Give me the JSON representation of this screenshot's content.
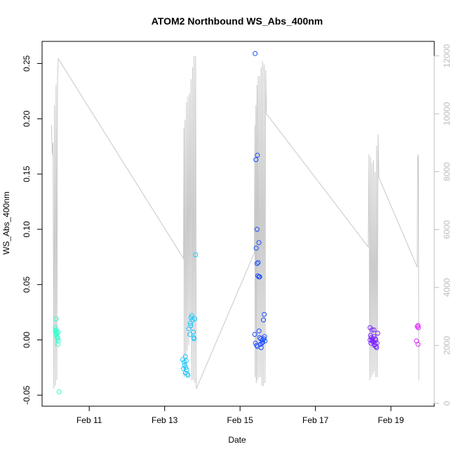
{
  "chart_data": {
    "type": "scatter",
    "title": "ATOM2 Northbound WS_Abs_400nm",
    "xlabel": "Date",
    "ylabel": "WS_Abs_400nm",
    "x_unit": "days since 2000-01-01 are not used; x values are day-of-February (decimal)",
    "x_range": [
      9.75,
      20.15
    ],
    "x_ticks": [
      11,
      13,
      15,
      17,
      19
    ],
    "x_tick_labels": [
      "Feb 11",
      "Feb 13",
      "Feb 15",
      "Feb 17",
      "Feb 19"
    ],
    "ylim": [
      -0.06,
      0.27
    ],
    "y_ticks": [
      -0.05,
      0.0,
      0.05,
      0.1,
      0.15,
      0.2,
      0.25
    ],
    "y_tick_labels": [
      "-0.05",
      "0.00",
      "0.05",
      "0.10",
      "0.15",
      "0.20",
      "0.25"
    ],
    "y2lim": [
      -100,
      12500
    ],
    "y2_ticks": [
      0,
      2000,
      4000,
      6000,
      8000,
      10000,
      12000
    ],
    "y2_tick_labels": [
      "0",
      "2000",
      "4000",
      "6000",
      "8000",
      "10000",
      "12000"
    ],
    "grid": false,
    "series": [
      {
        "color": "#33ffcc",
        "points": [
          [
            10.12,
            0.019
          ],
          [
            10.1,
            0.011
          ],
          [
            10.12,
            0.009
          ],
          [
            10.1,
            0.008
          ],
          [
            10.13,
            0.007
          ],
          [
            10.15,
            0.006
          ],
          [
            10.12,
            0.005
          ],
          [
            10.14,
            0.003
          ],
          [
            10.16,
            0.002
          ],
          [
            10.18,
            0.007
          ],
          [
            10.17,
            0.001
          ],
          [
            10.18,
            -0.001
          ],
          [
            10.17,
            -0.004
          ],
          [
            10.2,
            -0.047
          ]
        ]
      },
      {
        "color": "#19c6ff",
        "points": [
          [
            13.48,
            -0.018
          ],
          [
            13.52,
            -0.02
          ],
          [
            13.55,
            -0.015
          ],
          [
            13.57,
            -0.019
          ],
          [
            13.53,
            -0.023
          ],
          [
            13.56,
            -0.025
          ],
          [
            13.5,
            -0.026
          ],
          [
            13.58,
            -0.027
          ],
          [
            13.55,
            -0.03
          ],
          [
            13.6,
            -0.031
          ],
          [
            13.62,
            -0.032
          ],
          [
            13.64,
            0.01
          ],
          [
            13.67,
            0.005
          ],
          [
            13.68,
            0.015
          ],
          [
            13.7,
            0.02
          ],
          [
            13.72,
            0.022
          ],
          [
            13.74,
            0.018
          ],
          [
            13.76,
            0.007
          ],
          [
            13.77,
            0.002
          ],
          [
            13.78,
            0.001
          ],
          [
            13.8,
            0.019
          ],
          [
            13.82,
            0.077
          ],
          [
            13.69,
            0.013
          ]
        ]
      },
      {
        "color": "#1a4dff",
        "points": [
          [
            15.4,
            0.259
          ],
          [
            15.46,
            0.167
          ],
          [
            15.42,
            0.163
          ],
          [
            15.45,
            0.1
          ],
          [
            15.5,
            0.088
          ],
          [
            15.43,
            0.083
          ],
          [
            15.48,
            0.07
          ],
          [
            15.45,
            0.069
          ],
          [
            15.47,
            0.058
          ],
          [
            15.5,
            0.057
          ],
          [
            15.52,
            0.057
          ],
          [
            15.39,
            0.005
          ],
          [
            15.41,
            -0.003
          ],
          [
            15.44,
            -0.005
          ],
          [
            15.46,
            -0.006
          ],
          [
            15.5,
            0.008
          ],
          [
            15.52,
            0.002
          ],
          [
            15.54,
            -0.004
          ],
          [
            15.56,
            -0.007
          ],
          [
            15.58,
            -0.003
          ],
          [
            15.6,
            0.0
          ],
          [
            15.62,
            0.018
          ],
          [
            15.64,
            0.023
          ],
          [
            15.6,
            -0.002
          ],
          [
            15.63,
            0.001
          ],
          [
            15.66,
            -0.001
          ],
          [
            15.55,
            0.001
          ],
          [
            15.65,
            0.003
          ]
        ]
      },
      {
        "color": "#7a22ff",
        "points": [
          [
            18.45,
            0.011
          ],
          [
            18.5,
            0.009
          ],
          [
            18.55,
            0.009
          ],
          [
            18.46,
            0.004
          ],
          [
            18.48,
            0.002
          ],
          [
            18.52,
            0.001
          ],
          [
            18.55,
            0.003
          ],
          [
            18.58,
            0.001
          ],
          [
            18.6,
            0.0
          ],
          [
            18.45,
            0.0
          ],
          [
            18.5,
            -0.001
          ],
          [
            18.47,
            -0.003
          ],
          [
            18.53,
            -0.002
          ],
          [
            18.56,
            -0.005
          ],
          [
            18.6,
            -0.006
          ],
          [
            18.63,
            -0.003
          ],
          [
            18.62,
            -0.007
          ],
          [
            18.65,
            0.006
          ],
          [
            18.58,
            -0.004
          ],
          [
            18.5,
            0.0
          ]
        ]
      },
      {
        "color": "#e022ff",
        "points": [
          [
            19.72,
            0.013
          ],
          [
            19.7,
            0.012
          ],
          [
            19.73,
            0.011
          ],
          [
            19.68,
            -0.001
          ],
          [
            19.72,
            -0.004
          ]
        ]
      }
    ],
    "secondary_line": {
      "color": "#c8c8c8",
      "note": "gray line on right axis",
      "points": [
        [
          10.0,
          9600
        ],
        [
          10.02,
          8600
        ],
        [
          10.04,
          9000
        ],
        [
          10.06,
          500
        ],
        [
          10.08,
          10300
        ],
        [
          10.1,
          600
        ],
        [
          10.12,
          11000
        ],
        [
          10.14,
          800
        ],
        [
          10.16,
          11200
        ],
        [
          10.18,
          11900
        ],
        [
          13.5,
          5000
        ],
        [
          13.51,
          9500
        ],
        [
          13.52,
          900
        ],
        [
          13.54,
          9800
        ],
        [
          13.56,
          1200
        ],
        [
          13.58,
          10400
        ],
        [
          13.6,
          1800
        ],
        [
          13.62,
          10600
        ],
        [
          13.64,
          2000
        ],
        [
          13.66,
          10700
        ],
        [
          13.68,
          2500
        ],
        [
          13.7,
          11200
        ],
        [
          13.72,
          800
        ],
        [
          13.74,
          11600
        ],
        [
          13.76,
          800
        ],
        [
          13.78,
          12000
        ],
        [
          13.8,
          700
        ],
        [
          13.82,
          12000
        ],
        [
          13.84,
          500
        ],
        [
          15.38,
          5200
        ],
        [
          15.39,
          9600
        ],
        [
          15.4,
          900
        ],
        [
          15.42,
          10300
        ],
        [
          15.43,
          700
        ],
        [
          15.45,
          11000
        ],
        [
          15.46,
          800
        ],
        [
          15.48,
          11300
        ],
        [
          15.5,
          900
        ],
        [
          15.52,
          11300
        ],
        [
          15.54,
          900
        ],
        [
          15.56,
          11600
        ],
        [
          15.58,
          600
        ],
        [
          15.6,
          11800
        ],
        [
          15.62,
          600
        ],
        [
          15.64,
          11700
        ],
        [
          15.66,
          700
        ],
        [
          15.68,
          11500
        ],
        [
          15.7,
          10000
        ],
        [
          18.4,
          5400
        ],
        [
          18.42,
          8600
        ],
        [
          18.44,
          800
        ],
        [
          18.46,
          8500
        ],
        [
          18.48,
          900
        ],
        [
          18.5,
          8300
        ],
        [
          18.52,
          1000
        ],
        [
          18.54,
          8400
        ],
        [
          18.56,
          1100
        ],
        [
          18.58,
          8000
        ],
        [
          18.6,
          900
        ],
        [
          18.62,
          8900
        ],
        [
          18.64,
          900
        ],
        [
          18.66,
          9300
        ],
        [
          18.68,
          7800
        ],
        [
          19.7,
          4700
        ],
        [
          19.71,
          8500
        ],
        [
          19.72,
          8600
        ],
        [
          19.73,
          8400
        ],
        [
          19.74,
          800
        ]
      ]
    }
  }
}
